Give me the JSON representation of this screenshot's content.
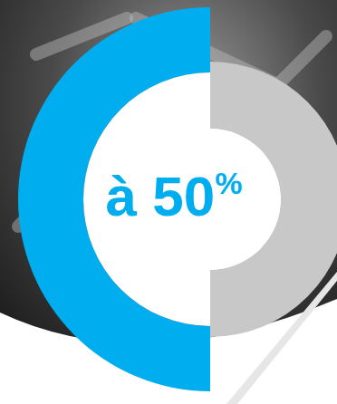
{
  "chart_data": {
    "type": "donut",
    "values": [
      50,
      50
    ],
    "colors": [
      "#00aeef",
      "#c8c8c8"
    ],
    "annotation": "à 50%"
  }
}
